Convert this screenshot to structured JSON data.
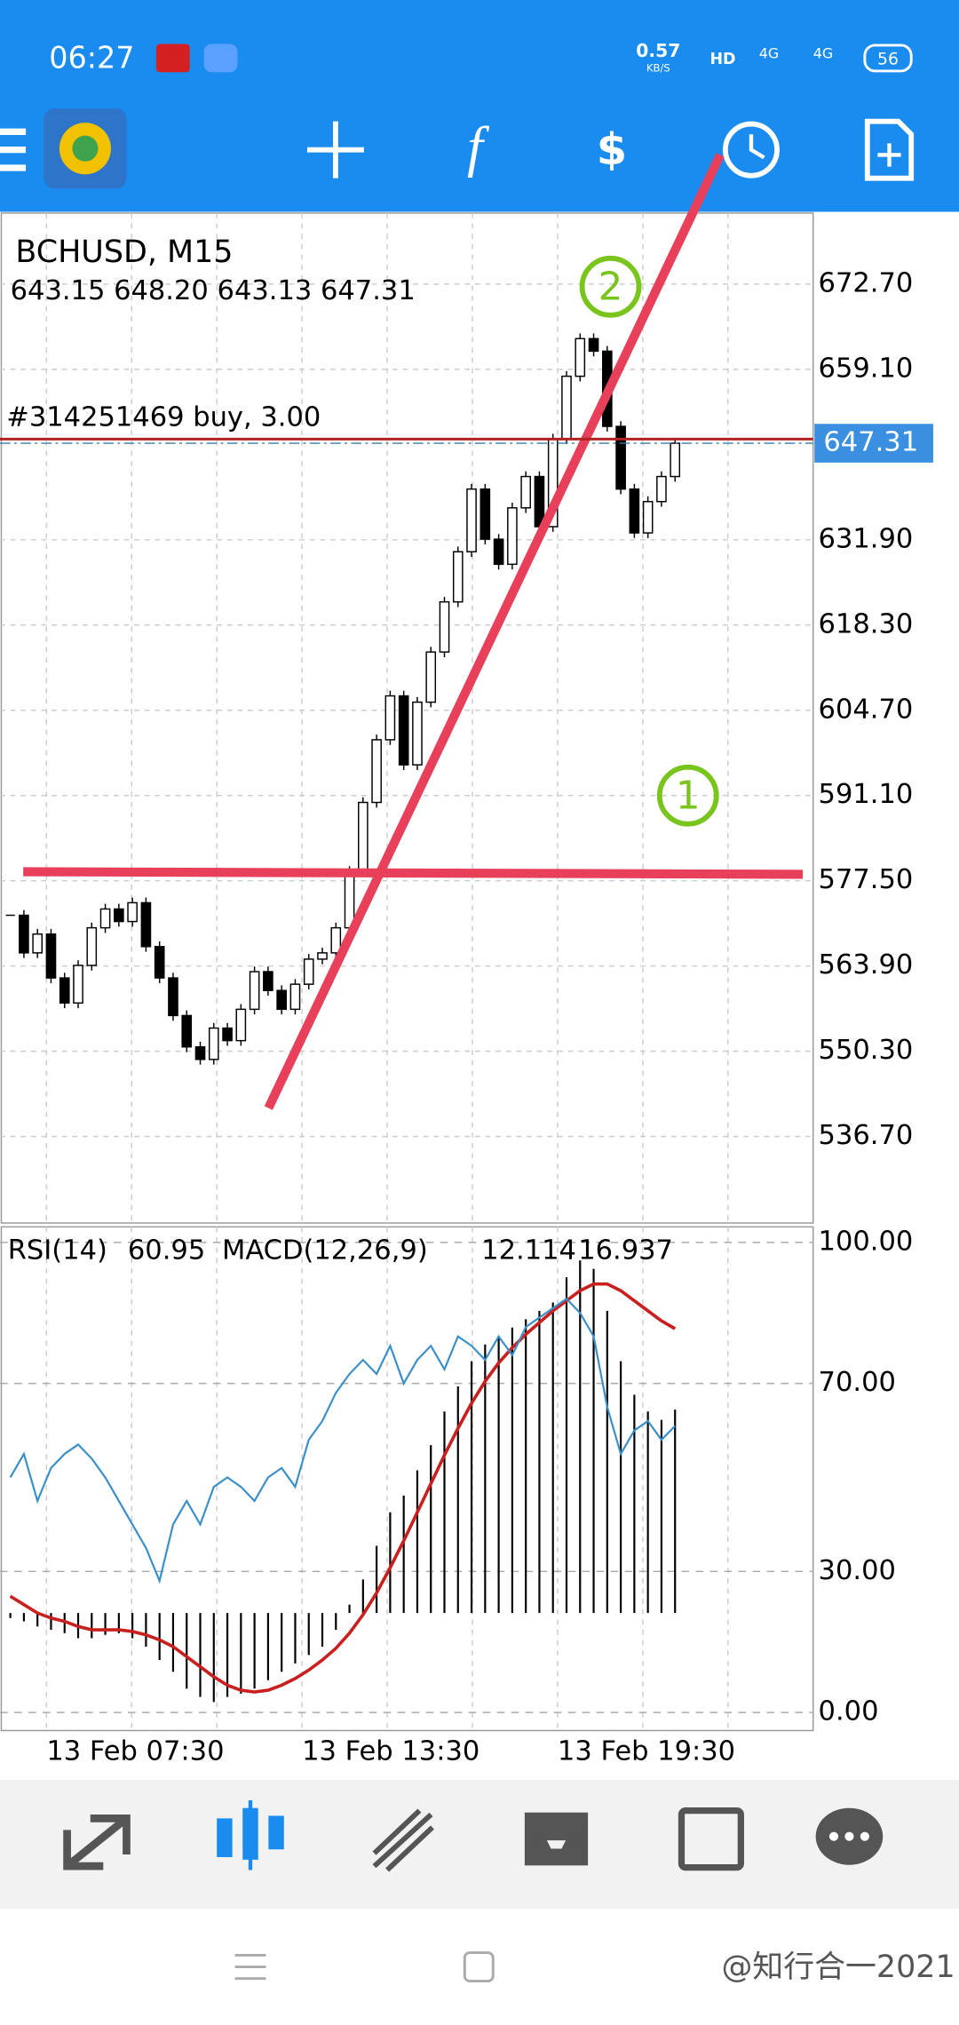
{
  "status_bar": {
    "time": "06:27",
    "speed": "0.57",
    "speed_unit": "KB/S",
    "network": [
      "HD",
      "4G",
      "4G"
    ],
    "battery": "56"
  },
  "chart_data": {
    "type": "candlestick",
    "symbol": "BCHUSD, M15",
    "ohlc_text": "643.15 648.20 643.13 647.31",
    "order_label": "#314251469 buy, 3.00",
    "closes": [
      572,
      566,
      569,
      562,
      558,
      564,
      570,
      573,
      571,
      574,
      567,
      562,
      556,
      551,
      549,
      554,
      552,
      557,
      563,
      560,
      557,
      561,
      565,
      566,
      570,
      579,
      590,
      600,
      607,
      596,
      606,
      614,
      622,
      630,
      640,
      632,
      628,
      637,
      642,
      634,
      648,
      658,
      664,
      662,
      650,
      640,
      633,
      638,
      642,
      647.31
    ],
    "up_color": "#ffffff",
    "down_color": "#000000",
    "ylim": [
      522.9,
      684.03
    ],
    "yticks": [
      {
        "value": 672.7,
        "label": "672.70"
      },
      {
        "value": 659.1,
        "label": "659.10"
      },
      {
        "value": 631.9,
        "label": "631.90"
      },
      {
        "value": 618.3,
        "label": "618.30"
      },
      {
        "value": 604.7,
        "label": "604.70"
      },
      {
        "value": 591.1,
        "label": "591.10"
      },
      {
        "value": 577.5,
        "label": "577.50"
      },
      {
        "value": 563.9,
        "label": "563.90"
      },
      {
        "value": 550.3,
        "label": "550.30"
      },
      {
        "value": 536.7,
        "label": "536.70"
      }
    ],
    "x_labels": [
      "13 Feb 07:30",
      "13 Feb 13:30",
      "13 Feb 19:30"
    ],
    "annotations": [
      2,
      1
    ],
    "grid": true,
    "indicator": {
      "rsi_name": "RSI(14)",
      "macd_name": "MACD(12,26,9)",
      "rsi": [
        50,
        55,
        45,
        52,
        55,
        57,
        54,
        50,
        45,
        40,
        35,
        28,
        40,
        45,
        40,
        48,
        50,
        48,
        45,
        50,
        52,
        48,
        58,
        62,
        68,
        72,
        75,
        72,
        78,
        70,
        75,
        78,
        73,
        80,
        78,
        75,
        80,
        76,
        82,
        84,
        86,
        88,
        85,
        80,
        65,
        55,
        60,
        62,
        58,
        60.95
      ],
      "rsi_color": "#3a8fc8",
      "ylim": [
        -3.85,
        103.3
      ],
      "yticks": [
        {
          "value": 100,
          "label": "100.00"
        },
        {
          "value": 70,
          "label": "70.00"
        },
        {
          "value": 30,
          "label": "30.00"
        },
        {
          "value": 0,
          "label": "0.00"
        }
      ],
      "macd": [
        -0.3,
        -0.5,
        -0.8,
        -1,
        -1.2,
        -1.5,
        -1.5,
        -1.3,
        -1.2,
        -1.5,
        -2,
        -2.8,
        -3.5,
        -4.5,
        -5,
        -5.3,
        -5,
        -4.8,
        -4.5,
        -4,
        -3.5,
        -3,
        -2.5,
        -2,
        -1,
        0.5,
        2,
        4,
        6,
        7,
        8.5,
        10,
        12,
        13.5,
        15,
        16,
        16.5,
        17,
        17.5,
        18,
        18.5,
        20,
        21,
        20.5,
        18,
        15,
        13,
        12,
        11.5,
        12.114
      ],
      "signal": [
        1,
        0.5,
        0,
        -0.3,
        -0.5,
        -0.8,
        -1,
        -1,
        -1,
        -1.1,
        -1.3,
        -1.6,
        -2,
        -2.6,
        -3.2,
        -3.8,
        -4.3,
        -4.6,
        -4.7,
        -4.6,
        -4.3,
        -3.9,
        -3.4,
        -2.8,
        -2.1,
        -1.2,
        -0.1,
        1.2,
        2.7,
        4.3,
        6,
        7.7,
        9.4,
        11,
        12.5,
        13.8,
        14.9,
        15.8,
        16.6,
        17.3,
        18,
        18.6,
        19.2,
        19.6,
        19.6,
        19.2,
        18.6,
        18,
        17.4,
        16.937
      ],
      "macd_color": "#000000",
      "signal_color": "#c8201e",
      "macd_ylim": [
        -7,
        23
      ]
    }
  },
  "watermark": "@知行合一2021"
}
